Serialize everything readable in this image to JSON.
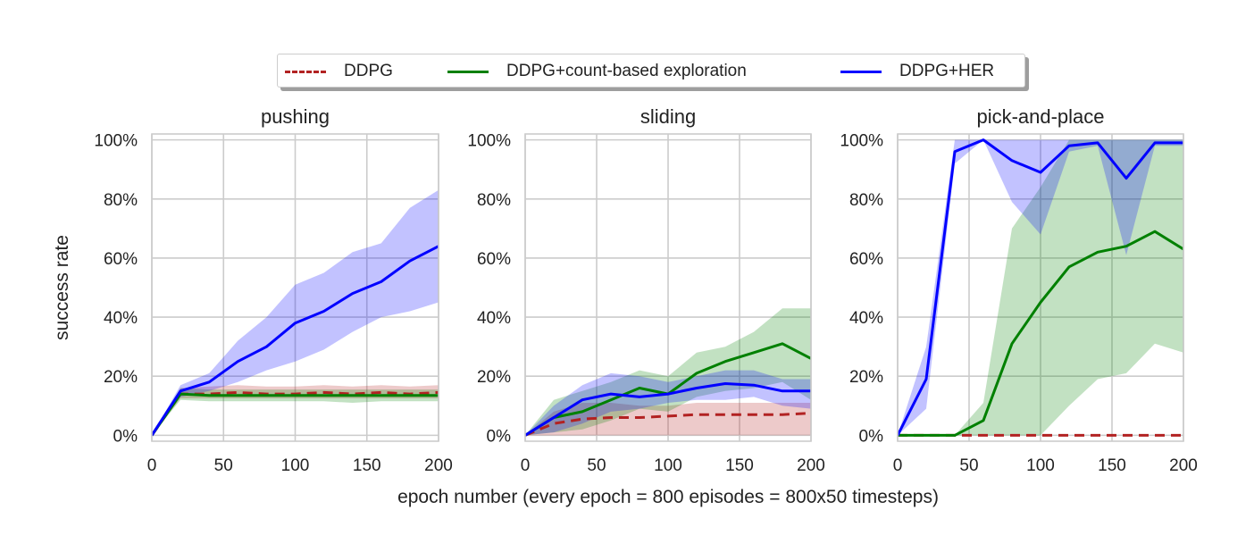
{
  "colors": {
    "DDPG": "#b22222",
    "DDPG+count-based exploration": "#008000",
    "DDPG+HER": "#0000ff",
    "grid": "#cccccc",
    "text": "#222222"
  },
  "legend": {
    "placement": "top-center",
    "items": [
      {
        "label": "DDPG",
        "style": "dashed"
      },
      {
        "label": "DDPG+count-based exploration",
        "style": "solid"
      },
      {
        "label": "DDPG+HER",
        "style": "solid"
      }
    ]
  },
  "chart_data": [
    {
      "type": "line",
      "title": "pushing",
      "xlabel": "",
      "ylabel": "success rate",
      "xlim": [
        0,
        200
      ],
      "ylim": [
        -2,
        102
      ],
      "xticks": [
        0,
        50,
        100,
        150,
        200
      ],
      "yticks": [
        0,
        20,
        40,
        60,
        80,
        100
      ],
      "ytick_labels": [
        "0%",
        "20%",
        "40%",
        "60%",
        "80%",
        "100%"
      ],
      "grid": true,
      "series": [
        {
          "name": "DDPG",
          "x": [
            0,
            20,
            40,
            60,
            80,
            100,
            120,
            140,
            160,
            180,
            200
          ],
          "values": [
            0,
            14,
            14,
            14.5,
            14,
            14,
            14.5,
            14,
            14.5,
            14,
            14.5
          ],
          "lower": [
            0,
            12.5,
            12.5,
            12.5,
            12.5,
            12.5,
            12.5,
            12.5,
            12.5,
            12.5,
            12.5
          ],
          "upper": [
            0,
            16,
            16.5,
            17,
            16.5,
            16.5,
            17,
            16.5,
            17,
            16.5,
            17
          ]
        },
        {
          "name": "DDPG+count-based exploration",
          "x": [
            0,
            20,
            40,
            60,
            80,
            100,
            120,
            140,
            160,
            180,
            200
          ],
          "values": [
            0,
            14,
            13.5,
            13.5,
            13.5,
            13.5,
            13.5,
            13.5,
            13.5,
            13.5,
            13.5
          ],
          "lower": [
            0,
            12,
            11.5,
            11.5,
            11.5,
            11.5,
            11.5,
            11,
            11.5,
            11.5,
            11.5
          ],
          "upper": [
            0,
            16,
            15.5,
            15.5,
            15.5,
            15.5,
            15.5,
            15.5,
            15.5,
            15.5,
            15.5
          ]
        },
        {
          "name": "DDPG+HER",
          "x": [
            0,
            20,
            40,
            60,
            80,
            100,
            120,
            140,
            160,
            180,
            200
          ],
          "values": [
            0,
            15,
            18,
            25,
            30,
            38,
            42,
            48,
            52,
            59,
            64
          ],
          "lower": [
            0,
            13,
            15,
            18,
            22,
            25,
            29,
            35,
            40,
            42,
            45
          ],
          "upper": [
            0,
            17,
            21,
            32,
            40,
            51,
            55,
            62,
            65,
            77,
            83
          ]
        }
      ]
    },
    {
      "type": "line",
      "title": "sliding",
      "xlabel": "",
      "ylabel": "",
      "xlim": [
        0,
        200
      ],
      "ylim": [
        -2,
        102
      ],
      "xticks": [
        0,
        50,
        100,
        150,
        200
      ],
      "yticks": [
        0,
        20,
        40,
        60,
        80,
        100
      ],
      "ytick_labels": [
        "0%",
        "20%",
        "40%",
        "60%",
        "80%",
        "100%"
      ],
      "grid": true,
      "series": [
        {
          "name": "DDPG",
          "x": [
            0,
            20,
            40,
            60,
            80,
            100,
            120,
            140,
            160,
            180,
            200
          ],
          "values": [
            0,
            4,
            5.5,
            6,
            6,
            6.5,
            7,
            7,
            7,
            7,
            7.5
          ],
          "lower": [
            0,
            0,
            0,
            0,
            0,
            0,
            0,
            0,
            0,
            0,
            0
          ],
          "upper": [
            0,
            8,
            11,
            11,
            10,
            10,
            11,
            11,
            11,
            11,
            11
          ]
        },
        {
          "name": "DDPG+count-based exploration",
          "x": [
            0,
            20,
            40,
            60,
            80,
            100,
            120,
            140,
            160,
            180,
            200
          ],
          "values": [
            0,
            6,
            8,
            12,
            16,
            14,
            21,
            25,
            28,
            31,
            26
          ],
          "lower": [
            0,
            1,
            2,
            5,
            9,
            8,
            13,
            15,
            16,
            18,
            12
          ],
          "upper": [
            0,
            12,
            15,
            18,
            22,
            20,
            28,
            30,
            35,
            43,
            43
          ]
        },
        {
          "name": "DDPG+HER",
          "x": [
            0,
            20,
            40,
            60,
            80,
            100,
            120,
            140,
            160,
            180,
            200
          ],
          "values": [
            0,
            6,
            12,
            14,
            13,
            14,
            16,
            17.5,
            17,
            15,
            15
          ],
          "lower": [
            0,
            1,
            4,
            8,
            9,
            11,
            12,
            12,
            13,
            10,
            9
          ],
          "upper": [
            0,
            10,
            17,
            21,
            20,
            18,
            20,
            22,
            22,
            19,
            19
          ]
        }
      ]
    },
    {
      "type": "line",
      "title": "pick-and-place",
      "xlabel": "",
      "ylabel": "",
      "xlim": [
        0,
        200
      ],
      "ylim": [
        -2,
        102
      ],
      "xticks": [
        0,
        50,
        100,
        150,
        200
      ],
      "yticks": [
        0,
        20,
        40,
        60,
        80,
        100
      ],
      "ytick_labels": [
        "0%",
        "20%",
        "40%",
        "60%",
        "80%",
        "100%"
      ],
      "grid": true,
      "series": [
        {
          "name": "DDPG",
          "x": [
            0,
            20,
            40,
            60,
            80,
            100,
            120,
            140,
            160,
            180,
            200
          ],
          "values": [
            0,
            0,
            0,
            0,
            0,
            0,
            0,
            0,
            0,
            0,
            0
          ],
          "lower": [
            0,
            0,
            0,
            0,
            0,
            0,
            0,
            0,
            0,
            0,
            0
          ],
          "upper": [
            0,
            0,
            0,
            0,
            0,
            0,
            0,
            0,
            0,
            0,
            0
          ]
        },
        {
          "name": "DDPG+count-based exploration",
          "x": [
            0,
            20,
            40,
            60,
            80,
            100,
            120,
            140,
            160,
            180,
            200
          ],
          "values": [
            0,
            0,
            0,
            5,
            31,
            45,
            57,
            62,
            64,
            69,
            63
          ],
          "lower": [
            0,
            0,
            0,
            0,
            0,
            0,
            10,
            19,
            21,
            31,
            28
          ],
          "upper": [
            0,
            0,
            0,
            11,
            70,
            84,
            100,
            100,
            100,
            100,
            100
          ]
        },
        {
          "name": "DDPG+HER",
          "x": [
            0,
            20,
            40,
            60,
            80,
            100,
            120,
            140,
            160,
            180,
            200
          ],
          "values": [
            0,
            19,
            96,
            100,
            93,
            89,
            98,
            99,
            87,
            99,
            99
          ],
          "lower": [
            0,
            9,
            92,
            100,
            79,
            68,
            96,
            98,
            61,
            98,
            98
          ],
          "upper": [
            0,
            30,
            100,
            100,
            100,
            100,
            100,
            100,
            100,
            100,
            100
          ]
        }
      ]
    }
  ],
  "shared_xlabel": "epoch number (every epoch = 800 episodes = 800x50 timesteps)"
}
